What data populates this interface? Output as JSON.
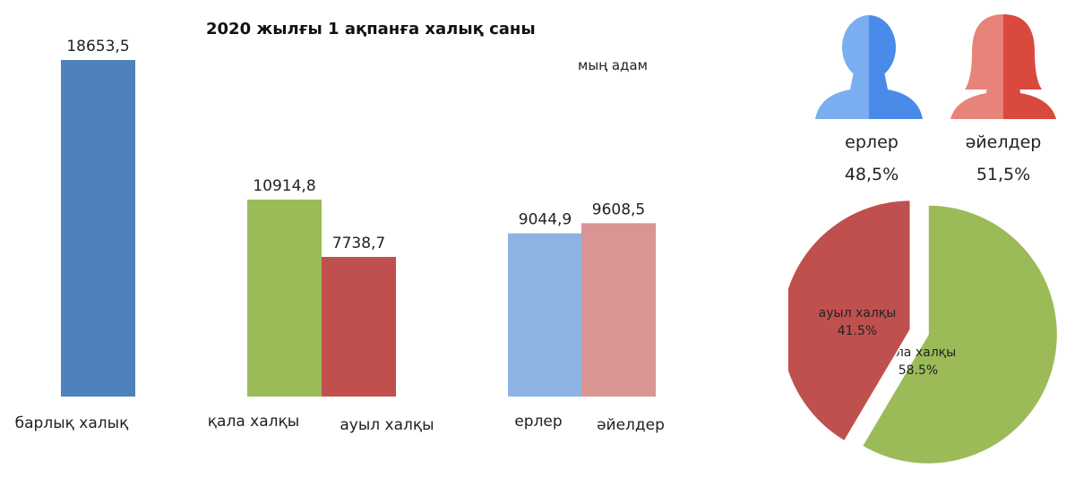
{
  "title": "2020 жылғы 1 ақпанға халық саны",
  "unit": "мың адам",
  "chart_data": [
    {
      "type": "bar",
      "title": "2020 жылғы 1 ақпанға халық саны",
      "unit": "мың адам",
      "ylim": [
        0,
        18653.5
      ],
      "grid": false,
      "categories": [
        "барлық халық",
        "қала халқы",
        "ауыл халқы",
        "ерлер",
        "әйелдер"
      ],
      "value_labels": [
        "18653,5",
        "10914,8",
        "7738,7",
        "9044,9",
        "9608,5"
      ],
      "values": [
        18653.5,
        10914.8,
        7738.7,
        9044.9,
        9608.5
      ],
      "colors": [
        "#4f81bd",
        "#9bbb59",
        "#c0504d",
        "#8db3e2",
        "#d99594"
      ]
    },
    {
      "type": "pie",
      "labels": [
        "қала халқы",
        "ауыл халқы"
      ],
      "values": [
        58.5,
        41.5
      ],
      "value_labels": [
        "58.5%",
        "41.5%"
      ],
      "colors": [
        "#9bbb59",
        "#c0504d"
      ]
    }
  ],
  "gender": {
    "men_label": "ерлер",
    "men_pct": "48,5%",
    "women_label": "әйелдер",
    "women_pct": "51,5%",
    "men_colors": [
      "#7aaef0",
      "#4a8ae8"
    ],
    "women_colors": [
      "#e8837a",
      "#d9493e"
    ],
    "men_icon": "man-silhouette-icon",
    "women_icon": "woman-silhouette-icon"
  }
}
